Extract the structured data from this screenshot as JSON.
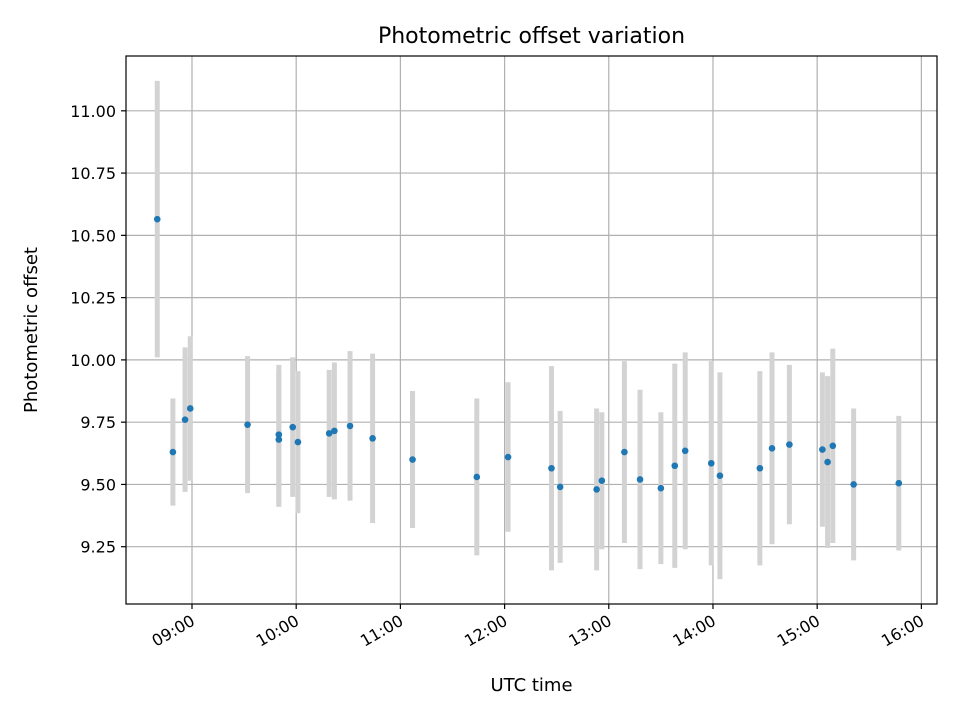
{
  "chart_data": {
    "type": "scatter",
    "title": "Photometric offset variation",
    "xlabel": "UTC time",
    "ylabel": "Photometric offset",
    "x_ticks": [
      "09:00",
      "10:00",
      "11:00",
      "12:00",
      "13:00",
      "14:00",
      "15:00",
      "16:00"
    ],
    "y_ticks": [
      "9.25",
      "9.50",
      "9.75",
      "10.00",
      "10.25",
      "10.50",
      "10.75",
      "11.00"
    ],
    "xlim": [
      "08:22",
      "16:09"
    ],
    "ylim": [
      9.02,
      11.22
    ],
    "grid": true,
    "marker_color": "#1f77b4",
    "errorbar_color": "#d3d3d3",
    "points": [
      {
        "x": "08:40",
        "y": 10.565,
        "err": 0.555
      },
      {
        "x": "08:49",
        "y": 9.63,
        "err": 0.215
      },
      {
        "x": "08:56",
        "y": 9.76,
        "err": 0.29
      },
      {
        "x": "08:59",
        "y": 9.805,
        "err": 0.29
      },
      {
        "x": "09:32",
        "y": 9.74,
        "err": 0.275
      },
      {
        "x": "09:50",
        "y": 9.7,
        "err": 0.28
      },
      {
        "x": "09:50",
        "y": 9.68,
        "err": 0.27
      },
      {
        "x": "09:58",
        "y": 9.73,
        "err": 0.28
      },
      {
        "x": "10:01",
        "y": 9.67,
        "err": 0.285
      },
      {
        "x": "10:19",
        "y": 9.705,
        "err": 0.255
      },
      {
        "x": "10:22",
        "y": 9.715,
        "err": 0.275
      },
      {
        "x": "10:31",
        "y": 9.735,
        "err": 0.3
      },
      {
        "x": "10:44",
        "y": 9.685,
        "err": 0.34
      },
      {
        "x": "11:07",
        "y": 9.6,
        "err": 0.275
      },
      {
        "x": "11:44",
        "y": 9.53,
        "err": 0.315
      },
      {
        "x": "12:02",
        "y": 9.61,
        "err": 0.3
      },
      {
        "x": "12:27",
        "y": 9.565,
        "err": 0.41
      },
      {
        "x": "12:32",
        "y": 9.49,
        "err": 0.305
      },
      {
        "x": "12:53",
        "y": 9.48,
        "err": 0.325
      },
      {
        "x": "12:56",
        "y": 9.515,
        "err": 0.275
      },
      {
        "x": "13:09",
        "y": 9.63,
        "err": 0.365
      },
      {
        "x": "13:18",
        "y": 9.52,
        "err": 0.36
      },
      {
        "x": "13:30",
        "y": 9.485,
        "err": 0.305
      },
      {
        "x": "13:38",
        "y": 9.575,
        "err": 0.41
      },
      {
        "x": "13:44",
        "y": 9.635,
        "err": 0.395
      },
      {
        "x": "13:59",
        "y": 9.585,
        "err": 0.41
      },
      {
        "x": "14:04",
        "y": 9.535,
        "err": 0.415
      },
      {
        "x": "14:27",
        "y": 9.565,
        "err": 0.39
      },
      {
        "x": "14:34",
        "y": 9.645,
        "err": 0.385
      },
      {
        "x": "14:44",
        "y": 9.66,
        "err": 0.32
      },
      {
        "x": "15:03",
        "y": 9.64,
        "err": 0.31
      },
      {
        "x": "15:06",
        "y": 9.59,
        "err": 0.345
      },
      {
        "x": "15:09",
        "y": 9.655,
        "err": 0.39
      },
      {
        "x": "15:21",
        "y": 9.5,
        "err": 0.305
      },
      {
        "x": "15:47",
        "y": 9.505,
        "err": 0.27
      }
    ]
  }
}
